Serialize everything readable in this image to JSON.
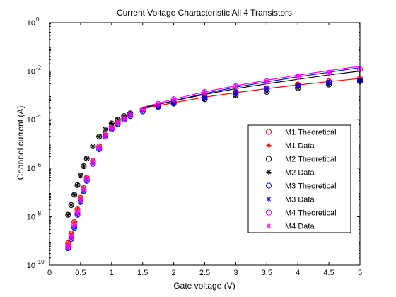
{
  "chart_data": {
    "type": "scatter",
    "title": "Current Voltage Characteristic All 4 Transistors",
    "xlabel": "Gate voltage (V)",
    "ylabel": "Channel current (A)",
    "xlim": [
      0,
      5
    ],
    "ylim": [
      1e-10,
      1
    ],
    "y_scale": "log",
    "grid": false,
    "legend_position": "lower-right",
    "x_ticks": [
      "0",
      "0.5",
      "1",
      "1.5",
      "2",
      "2.5",
      "3",
      "3.5",
      "4",
      "4.5",
      "5"
    ],
    "y_ticks": [
      {
        "base": "10",
        "exp": "-10"
      },
      {
        "base": "10",
        "exp": "-8"
      },
      {
        "base": "10",
        "exp": "-6"
      },
      {
        "base": "10",
        "exp": "-4"
      },
      {
        "base": "10",
        "exp": "-2"
      },
      {
        "base": "10",
        "exp": "0"
      }
    ],
    "x": [
      0.3,
      0.35,
      0.4,
      0.45,
      0.5,
      0.55,
      0.6,
      0.7,
      0.8,
      0.9,
      1.0,
      1.1,
      1.2,
      1.3,
      1.5,
      1.75,
      2.0,
      2.5,
      3.0,
      3.5,
      4.0,
      4.5,
      5.0
    ],
    "series": [
      {
        "name": "M1 Theoretical",
        "marker": "circle",
        "color": "#ff0000",
        "values": [
          8e-10,
          2e-09,
          6e-09,
          2e-08,
          6e-08,
          1.5e-07,
          4e-07,
          2e-06,
          8e-06,
          2.5e-05,
          5e-05,
          8e-05,
          0.00012,
          0.00016,
          0.00026,
          0.0004,
          0.00055,
          0.0009,
          0.0014,
          0.002,
          0.0028,
          0.0038,
          0.005
        ]
      },
      {
        "name": "M1 Data",
        "marker": "star",
        "color": "#ff0000",
        "values": [
          8e-10,
          2e-09,
          6e-09,
          2e-08,
          6e-08,
          1.5e-07,
          4e-07,
          2e-06,
          8e-06,
          2.5e-05,
          5e-05,
          8e-05,
          0.00012,
          0.00016,
          0.00026,
          0.0004,
          0.00055,
          0.0009,
          0.0014,
          0.002,
          0.0028,
          0.0038,
          0.005
        ]
      },
      {
        "name": "M2 Theoretical",
        "marker": "circle",
        "color": "#000000",
        "values": [
          1.2e-08,
          3e-08,
          8e-08,
          2e-07,
          5e-07,
          1.2e-06,
          2.5e-06,
          8e-06,
          2e-05,
          4e-05,
          7e-05,
          0.0001,
          0.00014,
          0.00018,
          0.00026,
          0.00036,
          0.00046,
          0.0007,
          0.001,
          0.0014,
          0.002,
          0.0028,
          0.0038
        ]
      },
      {
        "name": "M2 Data",
        "marker": "star",
        "color": "#000000",
        "values": [
          1.2e-08,
          3e-08,
          8e-08,
          2e-07,
          5e-07,
          1.2e-06,
          2.5e-06,
          8e-06,
          2e-05,
          4e-05,
          7e-05,
          0.0001,
          0.00014,
          0.00018,
          0.00026,
          0.00036,
          0.00046,
          0.0007,
          0.001,
          0.0014,
          0.002,
          0.0028,
          0.0038
        ]
      },
      {
        "name": "M3 Theoretical",
        "marker": "circle",
        "color": "#0000ff",
        "values": [
          5e-10,
          1.2e-09,
          3.5e-09,
          1.2e-08,
          4e-08,
          1.1e-07,
          3e-07,
          1.5e-06,
          6e-06,
          2e-05,
          4e-05,
          6.5e-05,
          0.0001,
          0.00014,
          0.00022,
          0.00034,
          0.00048,
          0.0008,
          0.0013,
          0.0019,
          0.0026,
          0.0034,
          0.0042
        ]
      },
      {
        "name": "M3 Data",
        "marker": "star",
        "color": "#0000ff",
        "values": [
          5e-10,
          1.2e-09,
          3.5e-09,
          1.2e-08,
          4e-08,
          1.1e-07,
          3e-07,
          1.5e-06,
          6e-06,
          2e-05,
          4e-05,
          6.5e-05,
          0.0001,
          0.00014,
          0.00022,
          0.00034,
          0.00048,
          0.0008,
          0.0013,
          0.0019,
          0.0026,
          0.0034,
          0.0042
        ]
      },
      {
        "name": "M4 Theoretical",
        "marker": "circle",
        "color": "#ff00ff",
        "values": [
          6e-10,
          1.5e-09,
          4.5e-09,
          1.5e-08,
          5e-08,
          1.3e-07,
          3.5e-07,
          1.8e-06,
          7e-06,
          2.2e-05,
          4.5e-05,
          7.5e-05,
          0.00011,
          0.00016,
          0.00026,
          0.00045,
          0.0007,
          0.0014,
          0.0024,
          0.0038,
          0.0058,
          0.0085,
          0.012
        ]
      },
      {
        "name": "M4 Data",
        "marker": "star",
        "color": "#ff00ff",
        "values": [
          6e-10,
          1.5e-09,
          4.5e-09,
          1.5e-08,
          5e-08,
          1.3e-07,
          3.5e-07,
          1.8e-06,
          7e-06,
          2.2e-05,
          4.5e-05,
          7.5e-05,
          0.00011,
          0.00016,
          0.00026,
          0.00045,
          0.0007,
          0.0014,
          0.0024,
          0.0038,
          0.0058,
          0.0085,
          0.012
        ]
      }
    ],
    "lines": [
      {
        "color": "#0000ff",
        "x": [
          1.5,
          2.0,
          2.5,
          3.0,
          3.5,
          4.0,
          4.5,
          5.0
        ],
        "values": [
          0.0003,
          0.0006,
          0.0012,
          0.0022,
          0.0036,
          0.0058,
          0.009,
          0.014
        ]
      },
      {
        "color": "#ff00ff",
        "x": [
          1.5,
          2.0,
          2.5,
          3.0,
          3.5,
          4.0,
          4.5,
          5.0
        ],
        "values": [
          0.00032,
          0.0007,
          0.0014,
          0.0025,
          0.0042,
          0.0068,
          0.0105,
          0.016
        ]
      },
      {
        "color": "#000000",
        "x": [
          1.5,
          2.0,
          2.5,
          3.0,
          3.5,
          4.0,
          4.5,
          5.0
        ],
        "values": [
          0.0003,
          0.0006,
          0.0011,
          0.0019,
          0.003,
          0.0046,
          0.007,
          0.01
        ]
      },
      {
        "color": "#ff0000",
        "x": [
          1.5,
          2.0,
          2.5,
          3.0,
          3.5,
          4.0,
          4.5,
          5.0
        ],
        "values": [
          0.00028,
          0.0005,
          0.00085,
          0.0013,
          0.0019,
          0.0027,
          0.0037,
          0.005
        ]
      }
    ]
  }
}
